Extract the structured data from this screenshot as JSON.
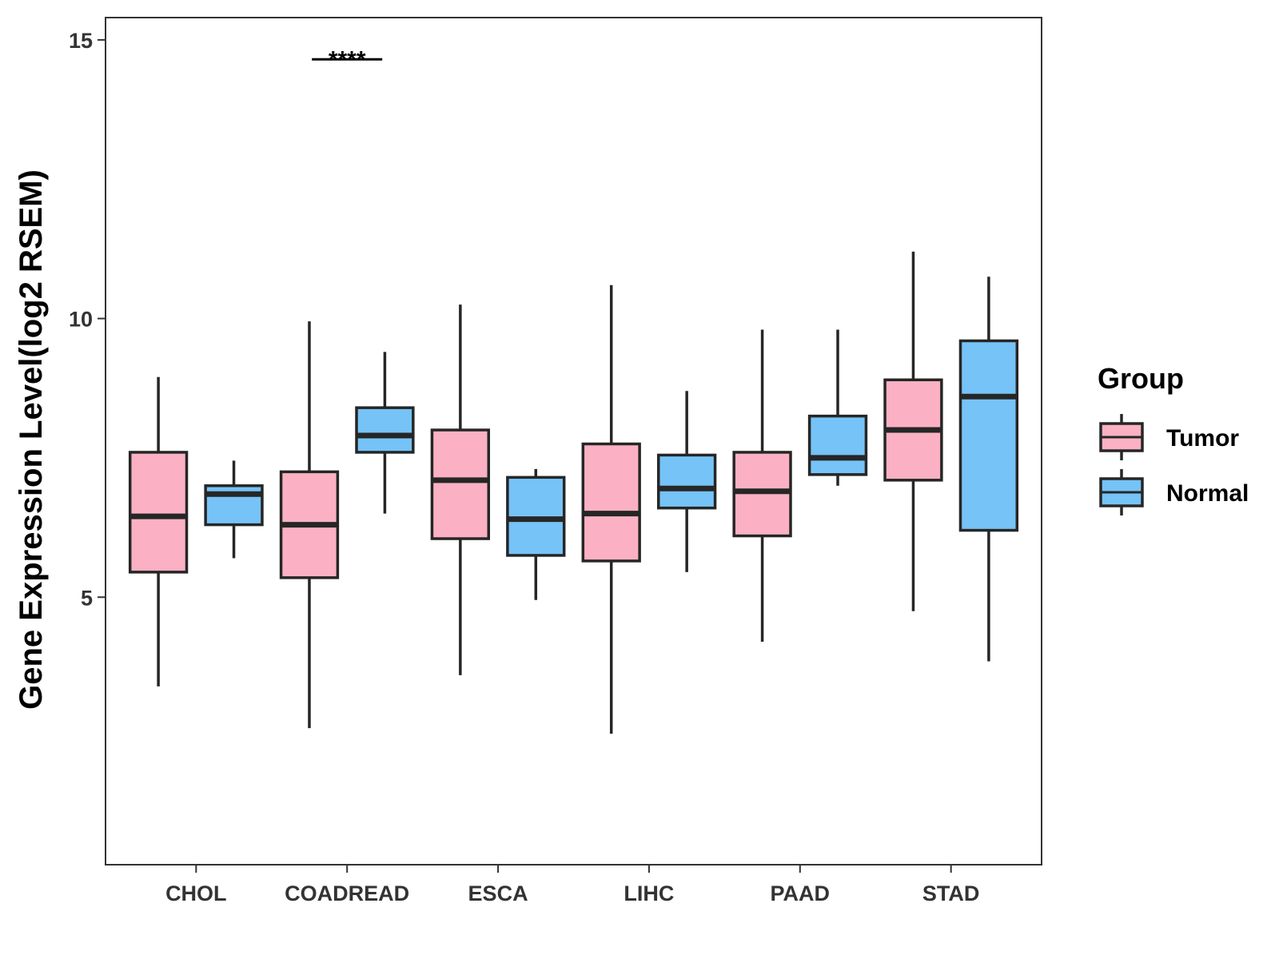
{
  "chart_data": {
    "type": "boxplot",
    "title": "",
    "xlabel": "",
    "ylabel": "Gene Expression Level(log2 RSEM)",
    "ylim": [
      0.2,
      15.4
    ],
    "yticks": [
      5,
      10,
      15
    ],
    "ytick_labels": [
      "5",
      "10",
      "15"
    ],
    "categories": [
      "CHOL",
      "COADREAD",
      "ESCA",
      "LIHC",
      "PAAD",
      "STAD"
    ],
    "legend": {
      "title": "Group",
      "position": "right",
      "entries": [
        {
          "name": "Tumor",
          "color": "#FBB1C3"
        },
        {
          "name": "Normal",
          "color": "#76C3F7"
        }
      ]
    },
    "series": [
      {
        "name": "Tumor",
        "color": "#FBB1C3",
        "boxes": [
          {
            "category": "CHOL",
            "min": 3.4,
            "q1": 5.45,
            "median": 6.45,
            "q3": 7.6,
            "max": 8.95
          },
          {
            "category": "COADREAD",
            "min": 2.65,
            "q1": 5.35,
            "median": 6.3,
            "q3": 7.25,
            "max": 9.95
          },
          {
            "category": "ESCA",
            "min": 3.6,
            "q1": 6.05,
            "median": 7.1,
            "q3": 8.0,
            "max": 10.25
          },
          {
            "category": "LIHC",
            "min": 2.55,
            "q1": 5.65,
            "median": 6.5,
            "q3": 7.75,
            "max": 10.6
          },
          {
            "category": "PAAD",
            "min": 4.2,
            "q1": 6.1,
            "median": 6.9,
            "q3": 7.6,
            "max": 9.8
          },
          {
            "category": "STAD",
            "min": 4.75,
            "q1": 7.1,
            "median": 8.0,
            "q3": 8.9,
            "max": 11.2
          }
        ]
      },
      {
        "name": "Normal",
        "color": "#76C3F7",
        "boxes": [
          {
            "category": "CHOL",
            "min": 5.7,
            "q1": 6.3,
            "median": 6.85,
            "q3": 7.0,
            "max": 7.45
          },
          {
            "category": "COADREAD",
            "min": 6.5,
            "q1": 7.6,
            "median": 7.9,
            "q3": 8.4,
            "max": 9.4
          },
          {
            "category": "ESCA",
            "min": 4.95,
            "q1": 5.75,
            "median": 6.4,
            "q3": 7.15,
            "max": 7.3
          },
          {
            "category": "LIHC",
            "min": 5.45,
            "q1": 6.6,
            "median": 6.95,
            "q3": 7.55,
            "max": 8.7
          },
          {
            "category": "PAAD",
            "min": 7.0,
            "q1": 7.2,
            "median": 7.5,
            "q3": 8.25,
            "max": 9.8
          },
          {
            "category": "STAD",
            "min": 3.85,
            "q1": 6.2,
            "median": 8.6,
            "q3": 9.6,
            "max": 10.75
          }
        ]
      }
    ],
    "annotations": [
      {
        "category": "COADREAD",
        "label": "****",
        "y": 14.65
      }
    ],
    "grid": false
  }
}
